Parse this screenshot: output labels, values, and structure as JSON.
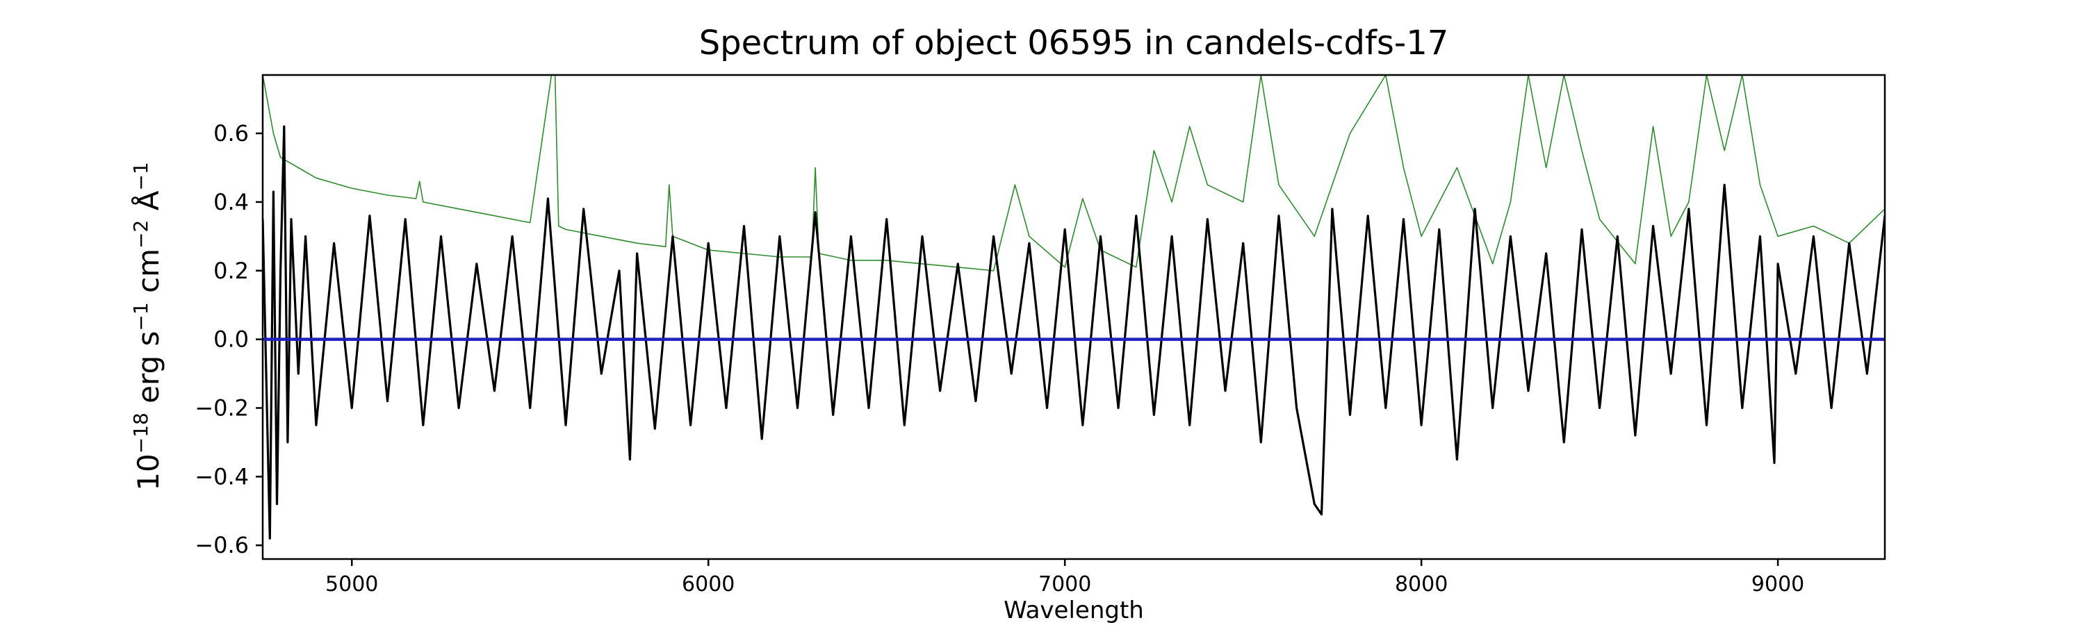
{
  "chart_data": {
    "type": "line",
    "title": "Spectrum of object 06595 in candels-cdfs-17",
    "xlabel": "Wavelength",
    "ylabel": {
      "base": "10",
      "exp1": "−18",
      "erg": " erg s",
      "exp2": "−1",
      "cm": " cm",
      "exp3": "−2",
      "ang": " Å",
      "exp4": "−1"
    },
    "xlim": [
      4750,
      9300
    ],
    "ylim": [
      -0.64,
      0.77
    ],
    "xticks": [
      5000,
      6000,
      7000,
      8000,
      9000
    ],
    "xtick_labels": [
      "5000",
      "6000",
      "7000",
      "8000",
      "9000"
    ],
    "yticks": [
      -0.6,
      -0.4,
      -0.2,
      0.0,
      0.2,
      0.4,
      0.6
    ],
    "ytick_labels": [
      "−0.6",
      "−0.4",
      "−0.2",
      "0.0",
      "0.2",
      "0.4",
      "0.6"
    ],
    "grid": false,
    "series": [
      {
        "role": "error",
        "color": "#2e8b2e",
        "x": [
          4750,
          4780,
          4800,
          4850,
          4900,
          5000,
          5100,
          5180,
          5190,
          5200,
          5300,
          5400,
          5500,
          5560,
          5570,
          5580,
          5600,
          5700,
          5800,
          5880,
          5890,
          5900,
          6000,
          6100,
          6200,
          6290,
          6300,
          6310,
          6400,
          6500,
          6600,
          6700,
          6800,
          6860,
          6900,
          7000,
          7050,
          7100,
          7200,
          7250,
          7300,
          7350,
          7400,
          7500,
          7550,
          7600,
          7700,
          7800,
          7900,
          7950,
          8000,
          8100,
          8200,
          8250,
          8300,
          8350,
          8400,
          8450,
          8500,
          8600,
          8650,
          8700,
          8750,
          8800,
          8850,
          8900,
          8950,
          9000,
          9100,
          9200,
          9300
        ],
        "y": [
          0.77,
          0.6,
          0.53,
          0.5,
          0.47,
          0.44,
          0.42,
          0.41,
          0.46,
          0.4,
          0.38,
          0.36,
          0.34,
          0.77,
          0.77,
          0.33,
          0.32,
          0.3,
          0.28,
          0.27,
          0.45,
          0.3,
          0.26,
          0.25,
          0.24,
          0.24,
          0.5,
          0.25,
          0.23,
          0.23,
          0.22,
          0.21,
          0.2,
          0.45,
          0.3,
          0.21,
          0.41,
          0.26,
          0.21,
          0.55,
          0.4,
          0.62,
          0.45,
          0.4,
          0.77,
          0.45,
          0.3,
          0.6,
          0.77,
          0.5,
          0.3,
          0.5,
          0.22,
          0.4,
          0.77,
          0.5,
          0.77,
          0.55,
          0.35,
          0.22,
          0.62,
          0.3,
          0.4,
          0.77,
          0.55,
          0.77,
          0.45,
          0.3,
          0.33,
          0.28,
          0.38
        ]
      },
      {
        "role": "flux",
        "color": "#000000",
        "x": [
          4750,
          4770,
          4780,
          4790,
          4800,
          4810,
          4820,
          4830,
          4850,
          4870,
          4900,
          4950,
          5000,
          5050,
          5100,
          5150,
          5200,
          5250,
          5300,
          5350,
          5400,
          5450,
          5500,
          5550,
          5600,
          5650,
          5700,
          5750,
          5780,
          5800,
          5850,
          5900,
          5950,
          6000,
          6050,
          6100,
          6150,
          6200,
          6250,
          6300,
          6350,
          6400,
          6450,
          6500,
          6550,
          6600,
          6650,
          6700,
          6750,
          6800,
          6850,
          6900,
          6950,
          7000,
          7050,
          7100,
          7150,
          7200,
          7250,
          7300,
          7350,
          7400,
          7450,
          7500,
          7550,
          7600,
          7650,
          7700,
          7720,
          7750,
          7800,
          7850,
          7900,
          7950,
          8000,
          8050,
          8100,
          8150,
          8200,
          8250,
          8300,
          8350,
          8400,
          8450,
          8500,
          8550,
          8600,
          8650,
          8700,
          8750,
          8800,
          8850,
          8900,
          8950,
          8990,
          9000,
          9050,
          9100,
          9150,
          9200,
          9250,
          9300
        ],
        "y": [
          0.35,
          -0.58,
          0.43,
          -0.48,
          0.2,
          0.62,
          -0.3,
          0.35,
          -0.1,
          0.3,
          -0.25,
          0.28,
          -0.2,
          0.36,
          -0.18,
          0.35,
          -0.25,
          0.3,
          -0.2,
          0.22,
          -0.15,
          0.3,
          -0.2,
          0.41,
          -0.25,
          0.38,
          -0.1,
          0.2,
          -0.35,
          0.25,
          -0.26,
          0.3,
          -0.25,
          0.28,
          -0.2,
          0.33,
          -0.29,
          0.3,
          -0.2,
          0.37,
          -0.22,
          0.3,
          -0.2,
          0.35,
          -0.25,
          0.3,
          -0.15,
          0.22,
          -0.18,
          0.3,
          -0.1,
          0.28,
          -0.2,
          0.32,
          -0.25,
          0.3,
          -0.2,
          0.36,
          -0.22,
          0.3,
          -0.25,
          0.35,
          -0.15,
          0.28,
          -0.3,
          0.36,
          -0.2,
          -0.48,
          -0.51,
          0.38,
          -0.22,
          0.36,
          -0.2,
          0.35,
          -0.25,
          0.32,
          -0.35,
          0.38,
          -0.2,
          0.3,
          -0.15,
          0.25,
          -0.3,
          0.32,
          -0.2,
          0.3,
          -0.28,
          0.33,
          -0.1,
          0.38,
          -0.25,
          0.45,
          -0.2,
          0.3,
          -0.36,
          0.22,
          -0.1,
          0.3,
          -0.2,
          0.28,
          -0.1,
          0.36
        ]
      },
      {
        "role": "zero",
        "color": "#1f1fbf",
        "x": [
          4750,
          9300
        ],
        "y": [
          0.0,
          0.0
        ]
      }
    ]
  }
}
